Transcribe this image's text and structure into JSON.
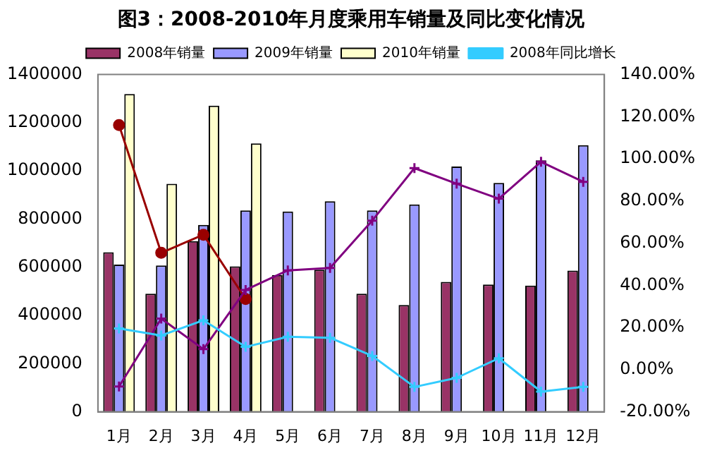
{
  "chart_data": {
    "type": "bar",
    "title": "图3：2008-2010年月度乘用车销量及同比变化情况",
    "categories": [
      "1月",
      "2月",
      "3月",
      "4月",
      "5月",
      "6月",
      "7月",
      "8月",
      "9月",
      "10月",
      "11月",
      "12月"
    ],
    "series": [
      {
        "name": "2008年销量",
        "color": "#993366",
        "values": [
          662000,
          490000,
          708000,
          604000,
          568000,
          590000,
          490000,
          443000,
          539000,
          528000,
          524000,
          586000
        ]
      },
      {
        "name": "2009年销量",
        "color": "#9999ff",
        "values": [
          611000,
          607000,
          776000,
          836000,
          831000,
          874000,
          836000,
          861000,
          1018000,
          950000,
          1044000,
          1107000
        ]
      },
      {
        "name": "2010年销量",
        "color": "#ffffcc",
        "values": [
          1319000,
          946000,
          1271000,
          1114000,
          null,
          null,
          null,
          null,
          null,
          null,
          null,
          null
        ]
      },
      {
        "name": "2008年同比增长",
        "type": "line",
        "axis": "y2",
        "marker": "cross",
        "color": "#33ccff",
        "values": [
          19.5,
          16.2,
          23.4,
          10.8,
          15.6,
          15.1,
          6.5,
          -8.2,
          -3.9,
          5.4,
          -10.4,
          -8.2
        ]
      },
      {
        "type": "line",
        "axis": "y2",
        "marker": "cross",
        "color": "#800080",
        "values": [
          -8,
          24.2,
          9.7,
          37.8,
          47.1,
          48.2,
          70.7,
          95.6,
          88.2,
          81.1,
          98.6,
          89.1
        ]
      },
      {
        "type": "line",
        "axis": "y2",
        "marker": "circle",
        "color": "#990000",
        "values": [
          116,
          55.4,
          64,
          33.5,
          null,
          null,
          null,
          null,
          null,
          null,
          null,
          null
        ]
      }
    ],
    "ylim": [
      0,
      1400000
    ],
    "yticks": [
      0,
      200000,
      400000,
      600000,
      800000,
      1000000,
      1200000,
      1400000
    ],
    "y2lim": [
      -20,
      140
    ],
    "y2ticks": [
      {
        "value": -20,
        "label": "-20.00%"
      },
      {
        "value": 0,
        "label": "0.00%"
      },
      {
        "value": 20,
        "label": "20.00%"
      },
      {
        "value": 40,
        "label": "40.00%"
      },
      {
        "value": 60,
        "label": "60.00%"
      },
      {
        "value": 80,
        "label": "80.00%"
      },
      {
        "value": 100,
        "label": "100.00%"
      },
      {
        "value": 120,
        "label": "120.00%"
      },
      {
        "value": 140,
        "label": "140.00%"
      }
    ],
    "grid": false,
    "legend": "top"
  }
}
